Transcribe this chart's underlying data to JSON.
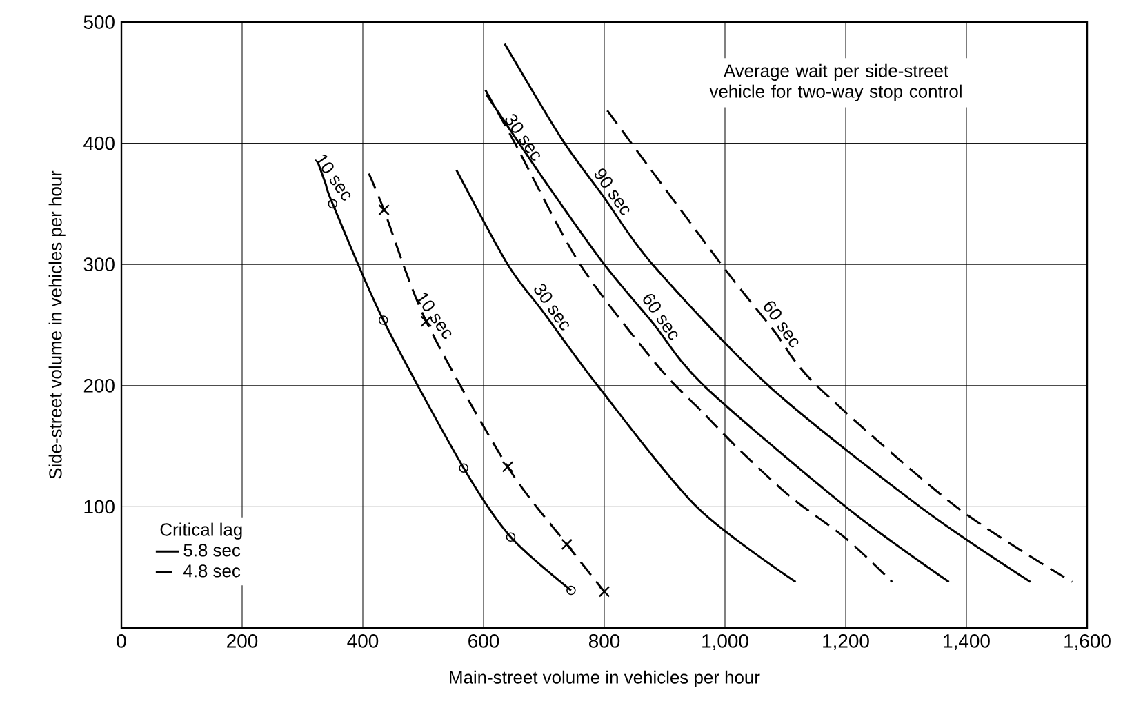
{
  "chart_data": {
    "type": "line",
    "xlabel": "Main-street volume in vehicles per hour",
    "ylabel": "Side-street volume in vehicles per hour",
    "legend_title": "Critical lag",
    "legend": "bottom left",
    "grid": true,
    "xlim": [
      0,
      1600
    ],
    "ylim": [
      0,
      500
    ],
    "xticks": [
      0,
      200,
      400,
      600,
      800,
      {
        "value": 1000,
        "label": "1,000"
      },
      {
        "value": 1200,
        "label": "1,200"
      },
      {
        "value": 1400,
        "label": "1,400"
      },
      {
        "value": 1600,
        "label": "1,600"
      }
    ],
    "yticks": [
      100,
      200,
      300,
      400,
      500
    ],
    "series": [
      {
        "name": "5.8 sec",
        "color": "#000000",
        "line_style": "solid",
        "marker": "none",
        "x": [
          325,
          338,
          350,
          434,
          567,
          645,
          745
        ],
        "values": [
          385,
          367,
          350,
          254,
          132,
          75,
          31
        ]
      },
      {
        "name": "4.8 sec",
        "color": "#000000",
        "line_style": "dashed",
        "marker": "none",
        "x": [
          410,
          435,
          505,
          640,
          738,
          800
        ],
        "values": [
          375,
          345,
          253,
          133,
          69,
          30
        ]
      },
      {
        "color": "#000000",
        "line_style": "solid",
        "marker": "none",
        "x": [
          555,
          640,
          700,
          789,
          953,
          1117
        ],
        "values": [
          378,
          300,
          260,
          200,
          100,
          38
        ]
      },
      {
        "color": "#000000",
        "line_style": "dashed",
        "marker": "none",
        "x": [
          603,
          652,
          760,
          889,
          965,
          1026,
          1109,
          1200,
          1277
        ],
        "values": [
          444,
          400,
          300,
          216,
          177,
          146,
          108,
          74,
          38
        ]
      },
      {
        "color": "#000000",
        "line_style": "solid",
        "marker": "none",
        "x": [
          605,
          700,
          800,
          880,
          965,
          1200,
          1371
        ],
        "values": [
          440,
          370,
          300,
          252,
          200,
          100,
          38
        ]
      },
      {
        "color": "#000000",
        "line_style": "solid",
        "marker": "none",
        "x": [
          635,
          729,
          800,
          880,
          1072,
          1323,
          1506
        ],
        "values": [
          482,
          404,
          355,
          300,
          200,
          100,
          38
        ]
      },
      {
        "color": "#000000",
        "line_style": "dashed",
        "marker": "none",
        "x": [
          805,
          994,
          1080,
          1152,
          1383,
          1575
        ],
        "values": [
          427,
          300,
          246,
          200,
          100,
          38
        ]
      },
      {
        "type": "scatter",
        "color": "#000000",
        "marker": "circle",
        "x": [
          350,
          434,
          567,
          645,
          745
        ],
        "values": [
          350,
          254,
          132,
          75,
          31
        ]
      },
      {
        "type": "scatter",
        "color": "#000000",
        "marker": "cross",
        "x": [
          435,
          505,
          640,
          738,
          800
        ],
        "values": [
          345,
          253,
          133,
          69,
          30
        ]
      }
    ],
    "annotations": [
      {
        "text": "10 sec",
        "x": 338,
        "y": 367
      },
      {
        "text": "10 sec",
        "x": 505,
        "y": 253
      },
      {
        "text": "30 sec",
        "x": 652,
        "y": 400
      },
      {
        "text": "30 sec",
        "x": 700,
        "y": 260
      },
      {
        "text": "90 sec",
        "x": 800,
        "y": 355
      },
      {
        "text": "60 sec",
        "x": 880,
        "y": 252
      },
      {
        "text": "60 sec",
        "x": 1080,
        "y": 246
      },
      "Average wait per side-street vehicle for two-way stop control"
    ]
  }
}
